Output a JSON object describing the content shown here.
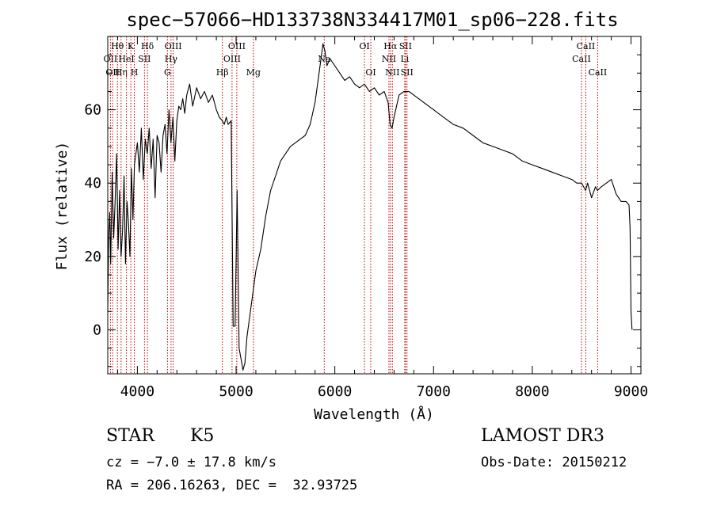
{
  "chart_data": {
    "type": "line",
    "title": "spec−57066−HD133738N334417M01_sp06−228.fits",
    "xlabel": "Wavelength (Å)",
    "ylabel": "Flux (relative)",
    "xlim": [
      3700,
      9100
    ],
    "ylim": [
      -12,
      80
    ],
    "xticks": [
      4000,
      5000,
      6000,
      7000,
      8000,
      9000
    ],
    "yticks": [
      0,
      20,
      40,
      60
    ],
    "grid": false,
    "line_color": "#000000",
    "marker_line_color": "#c00000",
    "series": [
      {
        "x": [
          3700,
          3710,
          3720,
          3730,
          3745,
          3760,
          3775,
          3790,
          3805,
          3820,
          3835,
          3850,
          3865,
          3880,
          3895,
          3910,
          3925,
          3940,
          3955,
          3970,
          3985,
          4000,
          4020,
          4040,
          4060,
          4080,
          4100,
          4120,
          4140,
          4160,
          4180,
          4200,
          4220,
          4240,
          4260,
          4280,
          4300,
          4320,
          4340,
          4360,
          4380,
          4400,
          4420,
          4440,
          4460,
          4480,
          4500,
          4530,
          4560,
          4600,
          4640,
          4680,
          4720,
          4760,
          4800,
          4830,
          4860,
          4880,
          4900,
          4920,
          4950,
          4970,
          4980,
          4990,
          5010,
          5030,
          5050,
          5070,
          5090,
          5110,
          5130,
          5150,
          5170,
          5200,
          5250,
          5300,
          5350,
          5400,
          5450,
          5500,
          5550,
          5600,
          5650,
          5700,
          5750,
          5800,
          5850,
          5880,
          5900,
          5920,
          5950,
          6000,
          6050,
          6100,
          6150,
          6200,
          6250,
          6300,
          6350,
          6400,
          6450,
          6500,
          6540,
          6560,
          6580,
          6600,
          6650,
          6700,
          6750,
          6800,
          6900,
          7000,
          7100,
          7200,
          7300,
          7400,
          7500,
          7600,
          7700,
          7800,
          7900,
          8000,
          8100,
          8200,
          8300,
          8400,
          8450,
          8500,
          8540,
          8560,
          8600,
          8640,
          8660,
          8700,
          8750,
          8800,
          8850,
          8900,
          8950,
          8980,
          8990,
          9000,
          9010
        ],
        "y": [
          5,
          26,
          32,
          18,
          43,
          25,
          35,
          48,
          22,
          38,
          20,
          27,
          42,
          18,
          35,
          29,
          20,
          44,
          30,
          45,
          48,
          51,
          43,
          55,
          41,
          52,
          48,
          55,
          44,
          52,
          36,
          53,
          51,
          43,
          53,
          56,
          48,
          60,
          51,
          58,
          46,
          57,
          61,
          60,
          63,
          59,
          64,
          67,
          61,
          66,
          63,
          65,
          62,
          64,
          60,
          58,
          57,
          56,
          58,
          56,
          57,
          1,
          1,
          1,
          38,
          -5,
          -8,
          -11,
          -9,
          -2,
          2,
          6,
          10,
          16,
          22,
          31,
          38,
          42,
          46,
          48,
          50,
          51,
          52,
          53,
          56,
          62,
          72,
          78,
          76,
          72,
          74,
          72,
          70,
          68,
          69,
          67,
          66,
          67,
          65,
          66,
          64,
          65,
          62,
          56,
          55,
          58,
          64,
          65,
          65,
          64,
          62,
          60,
          58,
          56,
          55,
          53,
          51,
          50,
          49,
          48,
          46,
          45,
          44,
          43,
          42,
          41,
          40,
          40,
          38,
          40,
          36,
          39,
          38,
          39,
          40,
          41,
          37,
          35,
          35,
          34,
          28,
          5,
          0
        ]
      }
    ],
    "line_markers": [
      {
        "x": 3727,
        "labels": [
          "OII"
        ],
        "rows": [
          1
        ]
      },
      {
        "x": 3750,
        "labels": [
          "OII"
        ],
        "rows": [
          2
        ]
      },
      {
        "x": 3798,
        "labels": [
          "Hθ"
        ],
        "rows": [
          0
        ]
      },
      {
        "x": 3835,
        "labels": [
          "Hη"
        ],
        "rows": [
          2
        ]
      },
      {
        "x": 3889,
        "labels": [
          "HeI"
        ],
        "rows": [
          1
        ]
      },
      {
        "x": 3934,
        "labels": [
          "K"
        ],
        "rows": [
          0
        ]
      },
      {
        "x": 3969,
        "labels": [
          "H"
        ],
        "rows": [
          2
        ]
      },
      {
        "x": 4072,
        "labels": [
          "SII"
        ],
        "rows": [
          1
        ]
      },
      {
        "x": 4102,
        "labels": [
          "Hδ"
        ],
        "rows": [
          0
        ]
      },
      {
        "x": 4305,
        "labels": [
          "G"
        ],
        "rows": [
          2
        ]
      },
      {
        "x": 4341,
        "labels": [
          "Hγ"
        ],
        "rows": [
          1
        ]
      },
      {
        "x": 4363,
        "labels": [
          "OIII"
        ],
        "rows": [
          0
        ]
      },
      {
        "x": 4861,
        "labels": [
          "Hβ"
        ],
        "rows": [
          2
        ]
      },
      {
        "x": 4959,
        "labels": [
          "OIII"
        ],
        "rows": [
          1
        ]
      },
      {
        "x": 5007,
        "labels": [
          "OIII"
        ],
        "rows": [
          0
        ]
      },
      {
        "x": 5175,
        "labels": [
          "Mg"
        ],
        "rows": [
          2
        ]
      },
      {
        "x": 5893,
        "labels": [
          "Na"
        ],
        "rows": [
          1
        ]
      },
      {
        "x": 6300,
        "labels": [
          "OI"
        ],
        "rows": [
          0
        ]
      },
      {
        "x": 6364,
        "labels": [
          "OI"
        ],
        "rows": [
          2
        ]
      },
      {
        "x": 6548,
        "labels": [
          "NII"
        ],
        "rows": [
          1
        ]
      },
      {
        "x": 6563,
        "labels": [
          "Hα"
        ],
        "rows": [
          0
        ]
      },
      {
        "x": 6583,
        "labels": [
          "NII"
        ],
        "rows": [
          2
        ]
      },
      {
        "x": 6708,
        "labels": [
          "Li"
        ],
        "rows": [
          1
        ]
      },
      {
        "x": 6716,
        "labels": [
          "SII"
        ],
        "rows": [
          0
        ]
      },
      {
        "x": 6731,
        "labels": [
          "SII"
        ],
        "rows": [
          2
        ]
      },
      {
        "x": 8498,
        "labels": [
          "CaII"
        ],
        "rows": [
          1
        ]
      },
      {
        "x": 8542,
        "labels": [
          "CaII"
        ],
        "rows": [
          0
        ]
      },
      {
        "x": 8662,
        "labels": [
          "CaII"
        ],
        "rows": [
          2
        ]
      }
    ]
  },
  "info": {
    "class": "STAR",
    "subclass": "K5",
    "survey": "LAMOST DR3",
    "cz": "cz = −7.0 ± 17.8 km/s",
    "obs_date": "Obs-Date: 20150212",
    "coords": "RA = 206.16263, DEC =  32.93725"
  }
}
